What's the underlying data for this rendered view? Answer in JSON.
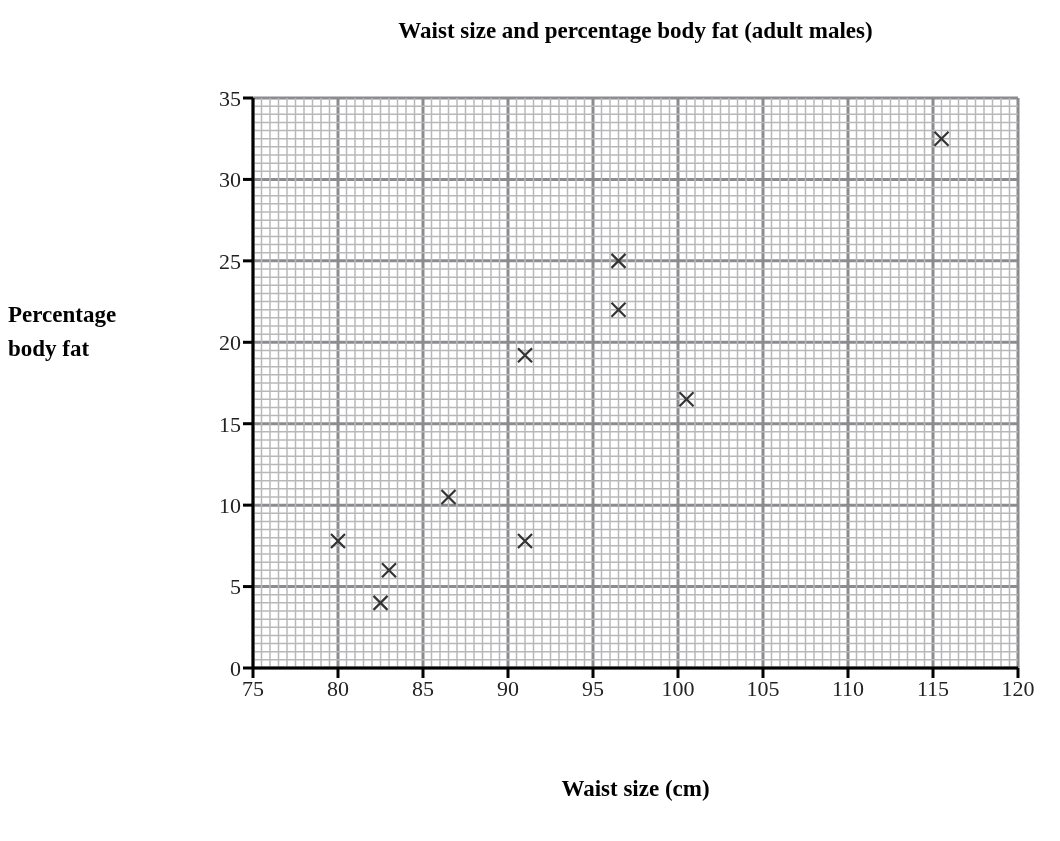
{
  "chart_data": {
    "type": "scatter",
    "title": "Waist size and percentage body fat (adult males)",
    "xlabel": "Waist size (cm)",
    "ylabel": "Percentage body fat",
    "x": [
      80,
      82.5,
      83,
      86.5,
      91,
      91,
      96.5,
      96.5,
      100.5,
      115.5
    ],
    "series": [
      {
        "color": "#333333",
        "values": [
          7.8,
          4,
          6,
          10.5,
          7.8,
          19.2,
          22,
          25,
          16.5,
          32.5
        ]
      }
    ],
    "xlim": [
      75,
      120
    ],
    "xticks": [
      75,
      80,
      85,
      90,
      95,
      100,
      105,
      110,
      115,
      120
    ],
    "ylim": [
      0,
      35
    ],
    "yticks": [
      0,
      5,
      10,
      15,
      20,
      25,
      30,
      35
    ],
    "grid": true,
    "marker": "cross"
  }
}
